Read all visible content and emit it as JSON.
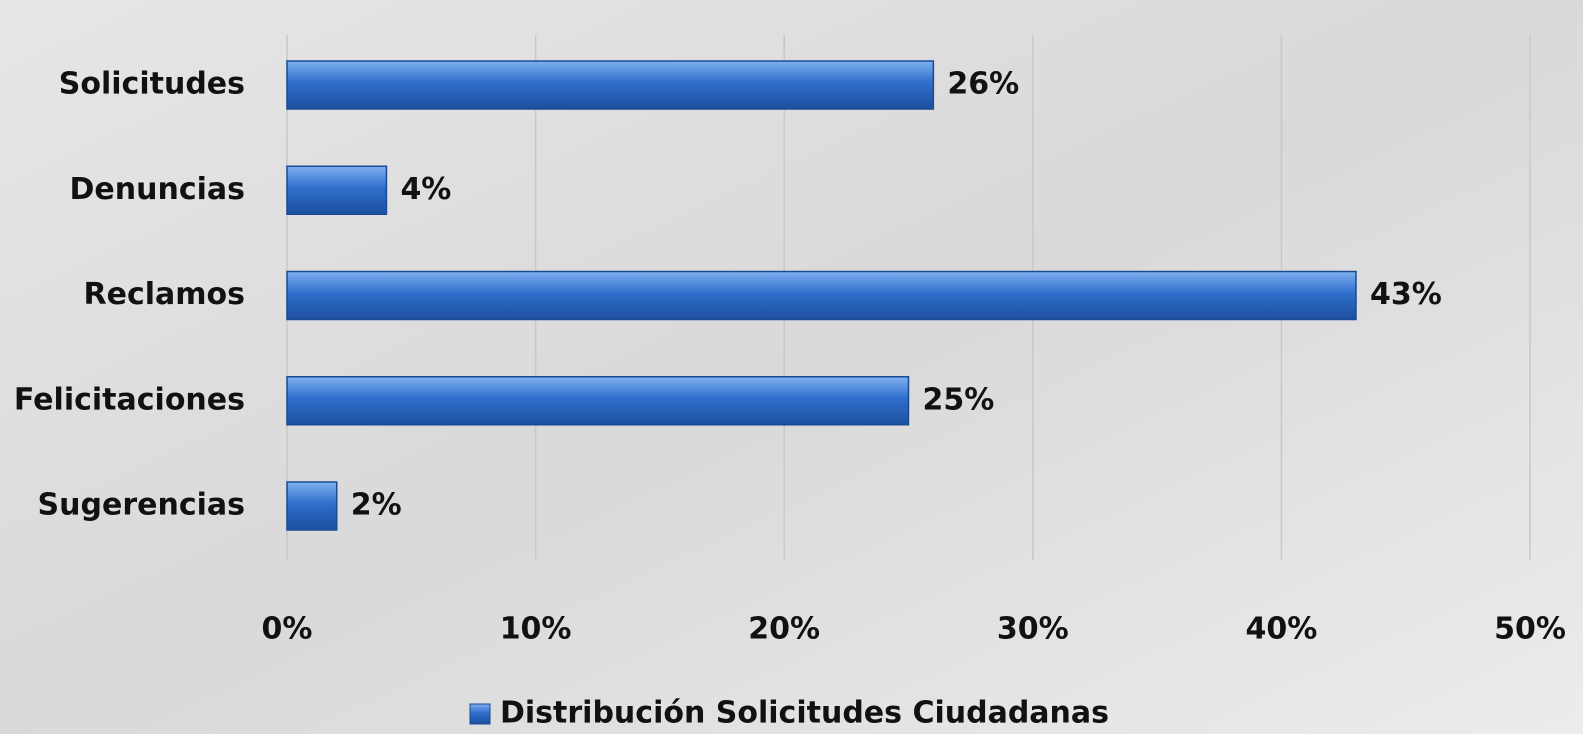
{
  "chart_data": {
    "type": "bar",
    "orientation": "horizontal",
    "categories": [
      "Solicitudes",
      "Denuncias",
      "Reclamos",
      "Felicitaciones",
      "Sugerencias"
    ],
    "series": [
      {
        "name": "Distribución Solicitudes Ciudadanas",
        "color": "#2e6fcc",
        "values": [
          26,
          4,
          43,
          25,
          2
        ],
        "value_labels": [
          "26%",
          "4%",
          "43%",
          "25%",
          "2%"
        ]
      }
    ],
    "xlim": [
      0,
      50
    ],
    "xticks": [
      {
        "value": 0,
        "label": "0%"
      },
      {
        "value": 10,
        "label": "10%"
      },
      {
        "value": 20,
        "label": "20%"
      },
      {
        "value": 30,
        "label": "30%"
      },
      {
        "value": 40,
        "label": "40%"
      },
      {
        "value": 50,
        "label": "50%"
      }
    ],
    "grid": true,
    "legend": "bottom"
  }
}
